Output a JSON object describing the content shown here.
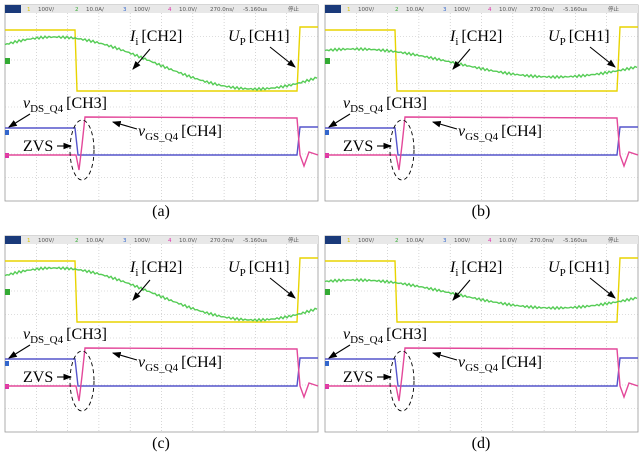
{
  "scope_header": [
    "1",
    "100V/",
    "2",
    "10.0A/",
    "3",
    "100V/",
    "4",
    "10.0V/",
    "270.0ns/",
    "-5.160us",
    "停止"
  ],
  "labels": {
    "ch2": {
      "main": "I",
      "sub": "i",
      "channel": "[CH2]"
    },
    "ch1": {
      "main": "U",
      "sub": "P",
      "channel": "[CH1]"
    },
    "ch3": {
      "main": "v",
      "sub": "DS_Q4",
      "channel": "[CH3]"
    },
    "ch4": {
      "main": "v",
      "sub": "GS_Q4",
      "channel": "[CH4]"
    },
    "zvs": "ZVS"
  },
  "panels": [
    {
      "caption": "(a)"
    },
    {
      "caption": "(b)"
    },
    {
      "caption": "(c)"
    },
    {
      "caption": "(d)"
    }
  ]
}
